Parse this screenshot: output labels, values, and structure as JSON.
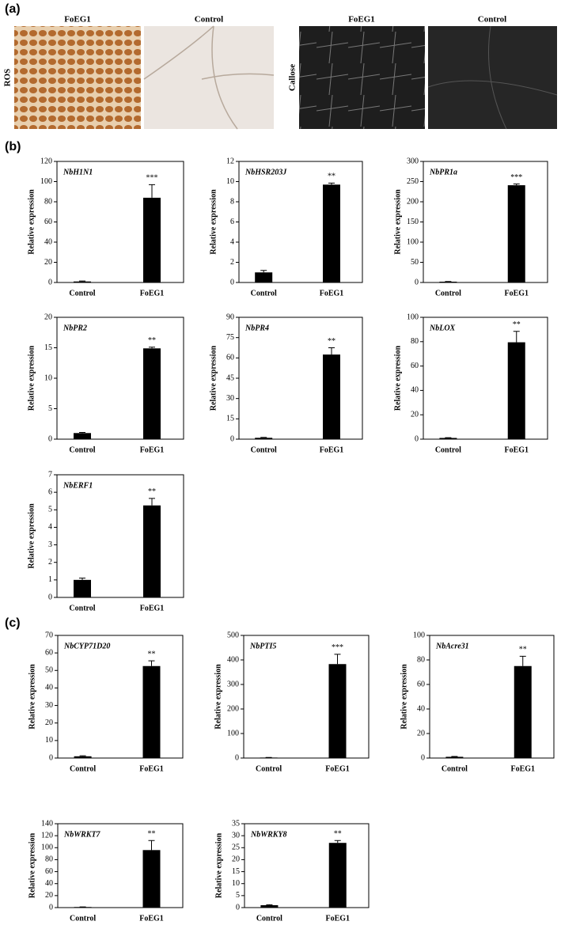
{
  "panel_labels": [
    "(a)",
    "(b)",
    "(c)"
  ],
  "images": {
    "row_labels": [
      "ROS",
      "Callose"
    ],
    "column_labels": [
      "FoEG1",
      "Control",
      "FoEG1",
      "Control"
    ]
  },
  "chart_data": [
    {
      "type": "bar",
      "title": "NbH1N1",
      "ylabel": "Relative expression",
      "categories": [
        "Control",
        "FoEG1"
      ],
      "values": [
        1,
        84
      ],
      "errors": [
        0.5,
        13
      ],
      "annotation": "***",
      "color": "#000000",
      "ylim": [
        0,
        120
      ],
      "yticks": [
        0,
        20,
        40,
        60,
        80,
        100,
        120
      ]
    },
    {
      "type": "bar",
      "title": "NbHSR203J",
      "ylabel": "Relative expression",
      "categories": [
        "Control",
        "FoEG1"
      ],
      "values": [
        1,
        9.7
      ],
      "errors": [
        0.2,
        0.15
      ],
      "annotation": "**",
      "color": "#000000",
      "ylim": [
        0,
        12
      ],
      "yticks": [
        0,
        2,
        4,
        6,
        8,
        10,
        12
      ]
    },
    {
      "type": "bar",
      "title": "NbPR1a",
      "ylabel": "Relative expression",
      "categories": [
        "Control",
        "FoEG1"
      ],
      "values": [
        2,
        241
      ],
      "errors": [
        0.5,
        3
      ],
      "annotation": "***",
      "color": "#000000",
      "ylim": [
        0,
        300
      ],
      "yticks": [
        0,
        50,
        100,
        150,
        200,
        250,
        300
      ]
    },
    {
      "type": "bar",
      "title": "NbPR2",
      "ylabel": "Relative expression",
      "categories": [
        "Control",
        "FoEG1"
      ],
      "values": [
        1,
        14.9
      ],
      "errors": [
        0.1,
        0.2
      ],
      "annotation": "**",
      "color": "#000000",
      "ylim": [
        0,
        20
      ],
      "yticks": [
        0,
        5,
        10,
        15,
        20
      ]
    },
    {
      "type": "bar",
      "title": "NbPR4",
      "ylabel": "Relative expression",
      "categories": [
        "Control",
        "FoEG1"
      ],
      "values": [
        1,
        62.5
      ],
      "errors": [
        0.3,
        5
      ],
      "annotation": "**",
      "color": "#000000",
      "ylim": [
        0,
        90
      ],
      "yticks": [
        0,
        15,
        30,
        45,
        60,
        75,
        90
      ]
    },
    {
      "type": "bar",
      "title": "NbLOX",
      "ylabel": "Relative expression",
      "categories": [
        "Control",
        "FoEG1"
      ],
      "values": [
        1,
        79.5
      ],
      "errors": [
        0.2,
        9
      ],
      "annotation": "**",
      "color": "#000000",
      "ylim": [
        0,
        100
      ],
      "yticks": [
        0,
        20,
        40,
        60,
        80,
        100
      ]
    },
    {
      "type": "bar",
      "title": "NbERF1",
      "ylabel": "Relative expression",
      "categories": [
        "Control",
        "FoEG1"
      ],
      "values": [
        1,
        5.25
      ],
      "errors": [
        0.1,
        0.4
      ],
      "annotation": "**",
      "color": "#000000",
      "ylim": [
        0,
        7
      ],
      "yticks": [
        0,
        1,
        2,
        3,
        4,
        5,
        6,
        7
      ]
    },
    {
      "type": "bar",
      "title": "NbCYP71D20",
      "ylabel": "Relative expression",
      "categories": [
        "Control",
        "FoEG1"
      ],
      "values": [
        1,
        52.5
      ],
      "errors": [
        0.3,
        3
      ],
      "annotation": "**",
      "color": "#000000",
      "ylim": [
        0,
        70
      ],
      "yticks": [
        0,
        10,
        20,
        30,
        40,
        50,
        60,
        70
      ]
    },
    {
      "type": "bar",
      "title": "NbPTI5",
      "ylabel": "Relative expression",
      "categories": [
        "Control",
        "FoEG1"
      ],
      "values": [
        2,
        383
      ],
      "errors": [
        0.5,
        40
      ],
      "annotation": "***",
      "color": "#000000",
      "ylim": [
        0,
        500
      ],
      "yticks": [
        0,
        100,
        200,
        300,
        400,
        500
      ]
    },
    {
      "type": "bar",
      "title": "NbAcre31",
      "ylabel": "Relative expression",
      "categories": [
        "Control",
        "FoEG1"
      ],
      "values": [
        1,
        75
      ],
      "errors": [
        0.3,
        8
      ],
      "annotation": "**",
      "color": "#000000",
      "ylim": [
        0,
        100
      ],
      "yticks": [
        0,
        20,
        40,
        60,
        80,
        100
      ]
    },
    {
      "type": "bar",
      "title": "NbWRKT7",
      "ylabel": "Relative expression",
      "categories": [
        "Control",
        "FoEG1"
      ],
      "values": [
        1,
        96
      ],
      "errors": [
        0.2,
        16
      ],
      "annotation": "**",
      "color": "#000000",
      "ylim": [
        0,
        140
      ],
      "yticks": [
        0,
        20,
        40,
        60,
        80,
        100,
        120,
        140
      ]
    },
    {
      "type": "bar",
      "title": "NbWRKY8",
      "ylabel": "Relative expression",
      "categories": [
        "Control",
        "FoEG1"
      ],
      "values": [
        1,
        27
      ],
      "errors": [
        0.2,
        1
      ],
      "annotation": "**",
      "color": "#000000",
      "ylim": [
        0,
        35
      ],
      "yticks": [
        0,
        5,
        10,
        15,
        20,
        25,
        30,
        35
      ]
    }
  ]
}
